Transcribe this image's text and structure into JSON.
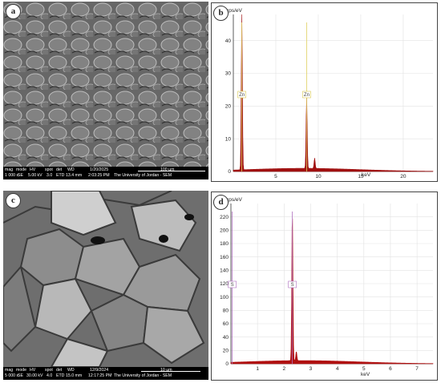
{
  "panels": {
    "a": {
      "label": "a",
      "databar": {
        "headers": [
          "mag",
          "mode",
          "HV",
          "spot",
          "det",
          "WD"
        ],
        "values": [
          "1 000 x",
          "SE",
          "5.00 kV",
          "3.0",
          "ETD",
          "13.4 mm"
        ],
        "date": "1/20/2025",
        "time": "2:03:25 PM",
        "scale": "100 µm",
        "institution": "The University of Jordan - SEM"
      }
    },
    "b": {
      "label": "b",
      "ylabel": "cps/eV",
      "xlabel": "keV",
      "peak_labels": [
        "Zn",
        "Zn"
      ]
    },
    "c": {
      "label": "c",
      "databar": {
        "headers": [
          "mag",
          "mode",
          "HV",
          "spot",
          "det",
          "WD"
        ],
        "values": [
          "5 000 x",
          "SE",
          "30.00 kV",
          "4.0",
          "ETD",
          "15.0 mm"
        ],
        "date": "12/9/2024",
        "time": "12:17:25 PM",
        "scale": "10 µm",
        "institution": "The University of Jordan - SEM"
      }
    },
    "d": {
      "label": "d",
      "ylabel": "cps/eV",
      "xlabel": "keV",
      "peak_labels": [
        "S",
        "S"
      ]
    }
  },
  "chart_data": [
    {
      "type": "line",
      "panel": "b",
      "title": "",
      "xlabel": "keV",
      "ylabel": "cps/eV",
      "xlim": [
        0,
        23.5
      ],
      "ylim": [
        0,
        48
      ],
      "xticks": [
        5,
        10,
        15,
        20
      ],
      "yticks": [
        0,
        10,
        20,
        30,
        40
      ],
      "grid": true,
      "color": "#a01010",
      "peaks": [
        {
          "x": 1.0,
          "y": 48,
          "label": "Zn"
        },
        {
          "x": 8.63,
          "y": 22,
          "label": "Zn"
        },
        {
          "x": 9.57,
          "y": 3.2
        }
      ],
      "annotations": [
        {
          "text": "Zn",
          "x": 1.0
        },
        {
          "text": "Zn",
          "x": 8.63
        }
      ]
    },
    {
      "type": "line",
      "panel": "d",
      "title": "",
      "xlabel": "keV",
      "ylabel": "cps/eV",
      "xlim": [
        0,
        7.6
      ],
      "ylim": [
        0,
        240
      ],
      "xticks": [
        1,
        2,
        3,
        4,
        5,
        6,
        7
      ],
      "yticks": [
        0,
        20,
        40,
        60,
        80,
        100,
        120,
        140,
        160,
        180,
        200,
        220
      ],
      "grid": true,
      "color": "#b01010",
      "peaks": [
        {
          "x": 2.31,
          "y": 228,
          "label": "S"
        },
        {
          "x": 2.46,
          "y": 14
        }
      ],
      "annotations": [
        {
          "text": "S",
          "x": 0.05
        },
        {
          "text": "S",
          "x": 2.31
        }
      ]
    }
  ]
}
